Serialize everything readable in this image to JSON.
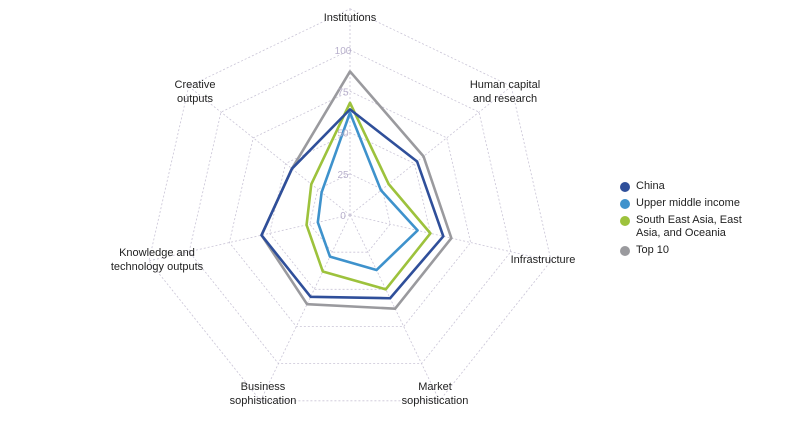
{
  "chart_data": {
    "type": "radar",
    "title": "",
    "axes": [
      "Institutions",
      "Human capital and research",
      "Infrastructure",
      "Market sophistication",
      "Business sophistication",
      "Knowledge and technology outputs",
      "Creative outputs"
    ],
    "axis_label_lines": [
      [
        "Institutions"
      ],
      [
        "Human capital",
        "and research"
      ],
      [
        "Infrastructure"
      ],
      [
        "Market",
        "sophistication"
      ],
      [
        "Business",
        "sophistication"
      ],
      [
        "Knowledge and",
        "technology outputs"
      ],
      [
        "Creative",
        "outputs"
      ]
    ],
    "ticks": [
      "0",
      "25",
      "50",
      "75",
      "100"
    ],
    "range": [
      0,
      100
    ],
    "grid": true,
    "legend_position": "right",
    "series": [
      {
        "name": "China",
        "color": "#2f4f9a",
        "values": [
          64,
          52,
          58,
          56,
          55,
          55,
          45
        ]
      },
      {
        "name": "Upper middle income",
        "color": "#3e92cc",
        "values": [
          62,
          24,
          42,
          37,
          28,
          20,
          22
        ]
      },
      {
        "name": "South East Asia, East Asia, and Oceania",
        "color": "#9dc23c",
        "values": [
          68,
          30,
          50,
          50,
          38,
          27,
          30
        ]
      },
      {
        "name": "Top 10",
        "color": "#9a9a9e",
        "values": [
          87,
          57,
          63,
          63,
          60,
          55,
          45
        ]
      }
    ],
    "legend_lines": [
      [
        "China"
      ],
      [
        "Upper middle income"
      ],
      [
        "South East Asia, East",
        "Asia, and Oceania"
      ],
      [
        "Top 10"
      ]
    ]
  }
}
